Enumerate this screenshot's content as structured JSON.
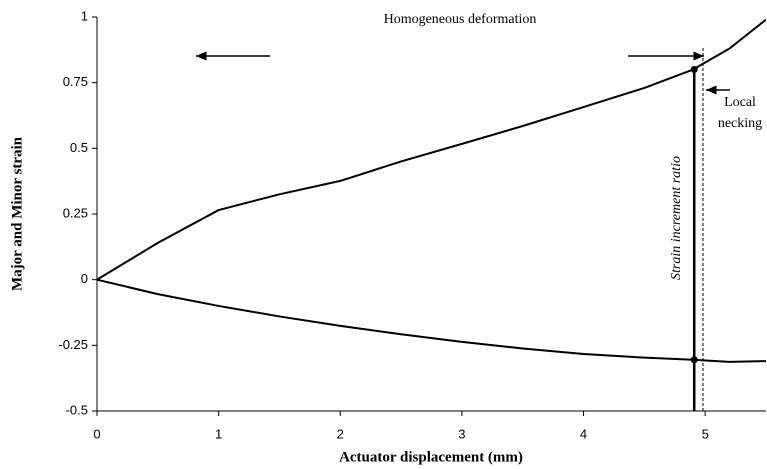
{
  "chart_data": {
    "type": "line",
    "xlabel": "Actuator displacement (mm)",
    "ylabel": "Major and Minor strain",
    "x": [
      0,
      0.5,
      1,
      1.5,
      2,
      2.5,
      3,
      3.5,
      4,
      4.5,
      4.9,
      5.2,
      5.5
    ],
    "series": [
      {
        "color": "#000000",
        "values": [
          0,
          0.14,
          0.265,
          0.325,
          0.376,
          0.45,
          0.517,
          0.585,
          0.657,
          0.73,
          0.8,
          0.88,
          0.99
        ]
      },
      {
        "color": "#000000",
        "values": [
          0,
          -0.055,
          -0.1,
          -0.14,
          -0.176,
          -0.208,
          -0.237,
          -0.262,
          -0.283,
          -0.297,
          -0.305,
          -0.313,
          -0.31
        ]
      }
    ],
    "markers": [
      {
        "x": 4.91,
        "y": 0.8
      },
      {
        "x": 4.91,
        "y": -0.305
      }
    ],
    "annotations": [
      "Homogeneous deformation",
      "Local",
      "necking",
      "Strain increment ratio"
    ],
    "xlim": [
      0,
      5.5
    ],
    "xticks": [
      0,
      1,
      2,
      3,
      4,
      5
    ],
    "ylim": [
      -0.5,
      1
    ],
    "yticks": [
      -0.5,
      -0.25,
      0,
      0.25,
      0.5,
      0.75,
      1
    ],
    "grid": false
  }
}
